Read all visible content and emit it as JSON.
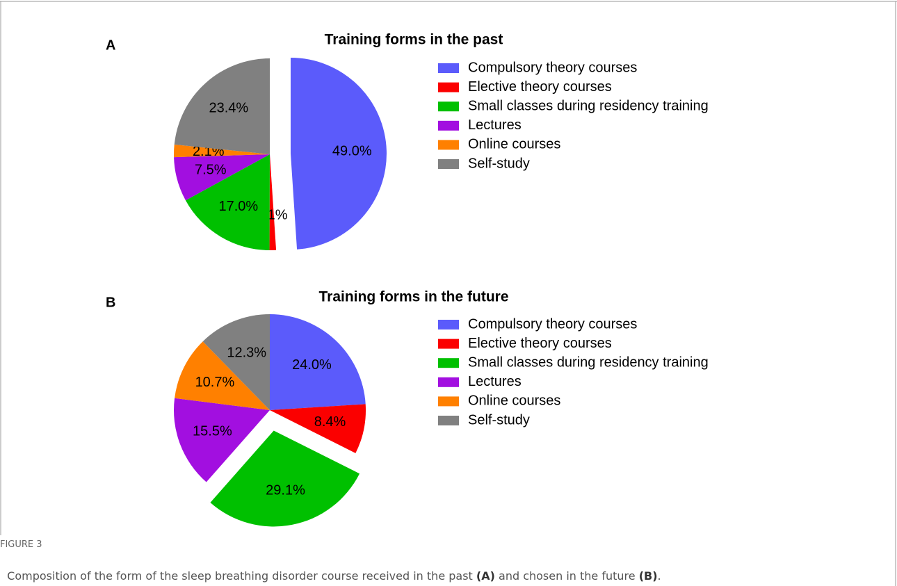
{
  "chart_data": [
    {
      "type": "pie",
      "panel": "A",
      "title": "Training forms in the past",
      "categories": [
        "Compulsory theory courses",
        "Elective theory courses",
        "Small classes during residency training",
        "Lectures",
        "Online courses",
        "Self-study"
      ],
      "values": [
        49.0,
        1.1,
        17.0,
        7.5,
        2.1,
        23.4
      ],
      "value_labels": [
        "49.0%",
        "1.1%",
        "17.0%",
        "7.5%",
        "2.1%",
        "23.4%"
      ],
      "colors": [
        "#5b5bfb",
        "#fb0000",
        "#00c000",
        "#a20fe0",
        "#ff8000",
        "#808080"
      ],
      "explode": [
        true,
        false,
        false,
        false,
        false,
        false
      ],
      "legend": "right"
    },
    {
      "type": "pie",
      "panel": "B",
      "title": "Training forms in the future",
      "categories": [
        "Compulsory theory courses",
        "Elective theory courses",
        "Small classes during residency training",
        "Lectures",
        "Online courses",
        "Self-study"
      ],
      "values": [
        24.0,
        8.4,
        29.1,
        15.5,
        10.7,
        12.3
      ],
      "value_labels": [
        "24.0%",
        "8.4%",
        "29.1%",
        "15.5%",
        "10.7%",
        "12.3%"
      ],
      "colors": [
        "#5b5bfb",
        "#fb0000",
        "#00c000",
        "#a20fe0",
        "#ff8000",
        "#808080"
      ],
      "explode": [
        false,
        false,
        true,
        false,
        false,
        false
      ],
      "legend": "right"
    }
  ],
  "caption": {
    "label": "FIGURE 3",
    "parts": [
      "Composition of the form of the sleep breathing disorder course received in the past ",
      "(A)",
      " and chosen in the future ",
      "(B)",
      "."
    ]
  }
}
